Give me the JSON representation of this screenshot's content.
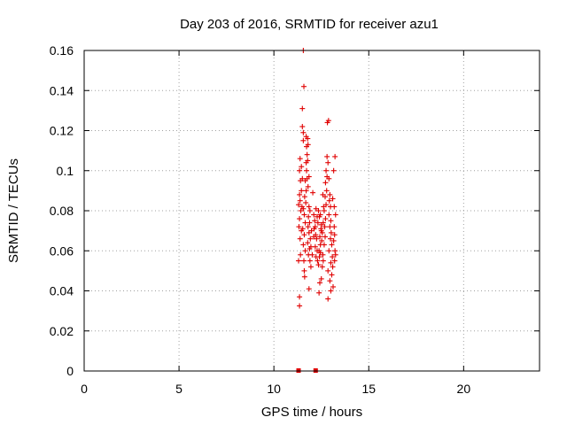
{
  "chart_data": {
    "type": "scatter",
    "title": "Day 203 of 2016, SRMTID for receiver azu1",
    "xlabel": "GPS time / hours",
    "ylabel": "SRMTID / TECUs",
    "xlim": [
      0,
      24
    ],
    "ylim": [
      0,
      0.16
    ],
    "xticks": [
      0,
      5,
      10,
      15,
      20
    ],
    "xtick_labels": [
      "0",
      "5",
      "10",
      "15",
      "20"
    ],
    "yticks": [
      0,
      0.02,
      0.04,
      0.06,
      0.08,
      0.1,
      0.12,
      0.14,
      0.16
    ],
    "ytick_labels": [
      "0",
      "0.02",
      "0.04",
      "0.06",
      "0.08",
      "0.1",
      "0.12",
      "0.14",
      "0.16"
    ],
    "grid": true,
    "marker": "plus",
    "color": "#e00000",
    "series": [
      {
        "name": "azu1",
        "points": [
          [
            11.35,
            0.0325
          ],
          [
            11.35,
            0.037
          ],
          [
            11.3,
            0.055
          ],
          [
            11.4,
            0.058
          ],
          [
            11.38,
            0.066
          ],
          [
            11.32,
            0.072
          ],
          [
            11.45,
            0.07
          ],
          [
            11.35,
            0.076
          ],
          [
            11.42,
            0.08
          ],
          [
            11.3,
            0.083
          ],
          [
            11.38,
            0.085
          ],
          [
            11.48,
            0.082
          ],
          [
            11.35,
            0.088
          ],
          [
            11.45,
            0.09
          ],
          [
            11.4,
            0.095
          ],
          [
            11.35,
            0.1
          ],
          [
            11.45,
            0.102
          ],
          [
            11.38,
            0.106
          ],
          [
            11.5,
            0.096
          ],
          [
            11.55,
            0.115
          ],
          [
            11.5,
            0.122
          ],
          [
            11.55,
            0.119
          ],
          [
            11.5,
            0.131
          ],
          [
            11.58,
            0.142
          ],
          [
            11.55,
            0.16
          ],
          [
            11.6,
            0.05
          ],
          [
            11.62,
            0.047
          ],
          [
            11.58,
            0.055
          ],
          [
            11.65,
            0.06
          ],
          [
            11.55,
            0.063
          ],
          [
            11.6,
            0.068
          ],
          [
            11.52,
            0.071
          ],
          [
            11.65,
            0.074
          ],
          [
            11.6,
            0.078
          ],
          [
            11.55,
            0.081
          ],
          [
            11.68,
            0.084
          ],
          [
            11.62,
            0.087
          ],
          [
            11.7,
            0.09
          ],
          [
            11.65,
            0.095
          ],
          [
            11.72,
            0.1
          ],
          [
            11.7,
            0.104
          ],
          [
            11.75,
            0.108
          ],
          [
            11.72,
            0.112
          ],
          [
            11.78,
            0.116
          ],
          [
            11.7,
            0.117
          ],
          [
            11.8,
            0.113
          ],
          [
            11.78,
            0.105
          ],
          [
            11.85,
            0.097
          ],
          [
            11.75,
            0.096
          ],
          [
            11.8,
            0.092
          ],
          [
            11.85,
            0.082
          ],
          [
            11.9,
            0.08
          ],
          [
            11.82,
            0.077
          ],
          [
            11.88,
            0.074
          ],
          [
            11.8,
            0.072
          ],
          [
            11.85,
            0.069
          ],
          [
            11.92,
            0.066
          ],
          [
            11.78,
            0.064
          ],
          [
            11.88,
            0.061
          ],
          [
            11.82,
            0.058
          ],
          [
            11.9,
            0.055
          ],
          [
            11.95,
            0.052
          ],
          [
            11.85,
            0.041
          ],
          [
            12.05,
            0.089
          ],
          [
            12.1,
            0.078
          ],
          [
            12.15,
            0.075
          ],
          [
            12.12,
            0.071
          ],
          [
            12.2,
            0.068
          ],
          [
            12.25,
            0.066
          ],
          [
            12.18,
            0.062
          ],
          [
            12.28,
            0.06
          ],
          [
            12.22,
            0.057
          ],
          [
            12.3,
            0.055
          ],
          [
            12.35,
            0.053
          ],
          [
            12.4,
            0.057
          ],
          [
            12.38,
            0.06
          ],
          [
            12.45,
            0.063
          ],
          [
            12.42,
            0.067
          ],
          [
            12.48,
            0.071
          ],
          [
            12.32,
            0.074
          ],
          [
            12.4,
            0.077
          ],
          [
            12.35,
            0.08
          ],
          [
            12.45,
            0.078
          ],
          [
            12.5,
            0.073
          ],
          [
            12.55,
            0.069
          ],
          [
            12.52,
            0.065
          ],
          [
            12.58,
            0.058
          ],
          [
            12.6,
            0.055
          ],
          [
            12.55,
            0.052
          ],
          [
            12.5,
            0.046
          ],
          [
            12.38,
            0.039
          ],
          [
            12.42,
            0.044
          ],
          [
            12.65,
            0.063
          ],
          [
            12.7,
            0.067
          ],
          [
            12.68,
            0.072
          ],
          [
            12.72,
            0.076
          ],
          [
            12.65,
            0.08
          ],
          [
            12.75,
            0.083
          ],
          [
            12.7,
            0.087
          ],
          [
            12.78,
            0.09
          ],
          [
            12.72,
            0.094
          ],
          [
            12.8,
            0.097
          ],
          [
            12.75,
            0.1
          ],
          [
            12.85,
            0.104
          ],
          [
            12.8,
            0.107
          ],
          [
            12.82,
            0.124
          ],
          [
            12.88,
            0.125
          ],
          [
            12.9,
            0.096
          ],
          [
            12.95,
            0.088
          ],
          [
            12.92,
            0.085
          ],
          [
            12.98,
            0.082
          ],
          [
            12.9,
            0.078
          ],
          [
            13.0,
            0.075
          ],
          [
            12.95,
            0.072
          ],
          [
            13.02,
            0.069
          ],
          [
            12.98,
            0.066
          ],
          [
            13.05,
            0.063
          ],
          [
            12.9,
            0.06
          ],
          [
            13.08,
            0.057
          ],
          [
            13.0,
            0.054
          ],
          [
            13.1,
            0.052
          ],
          [
            12.85,
            0.05
          ],
          [
            13.05,
            0.048
          ],
          [
            12.95,
            0.045
          ],
          [
            13.12,
            0.042
          ],
          [
            13.0,
            0.04
          ],
          [
            12.85,
            0.036
          ],
          [
            13.15,
            0.065
          ],
          [
            13.2,
            0.068
          ],
          [
            13.18,
            0.072
          ],
          [
            13.22,
            0.06
          ],
          [
            13.25,
            0.058
          ],
          [
            13.2,
            0.055
          ],
          [
            13.15,
            0.1
          ],
          [
            13.22,
            0.107
          ],
          [
            13.18,
            0.082
          ],
          [
            13.25,
            0.078
          ],
          [
            13.1,
            0.086
          ],
          [
            12.6,
            0.074
          ],
          [
            12.62,
            0.082
          ],
          [
            12.58,
            0.088
          ],
          [
            12.5,
            0.07
          ],
          [
            12.45,
            0.059
          ],
          [
            12.28,
            0.077
          ],
          [
            12.22,
            0.081
          ],
          [
            12.18,
            0.072
          ],
          [
            12.1,
            0.067
          ],
          [
            11.95,
            0.062
          ],
          [
            11.98,
            0.07
          ],
          [
            12.02,
            0.058
          ]
        ]
      }
    ],
    "baseline_markers": {
      "name": "zero-level markers",
      "points": [
        [
          11.3,
          0
        ],
        [
          12.2,
          0
        ]
      ]
    }
  }
}
